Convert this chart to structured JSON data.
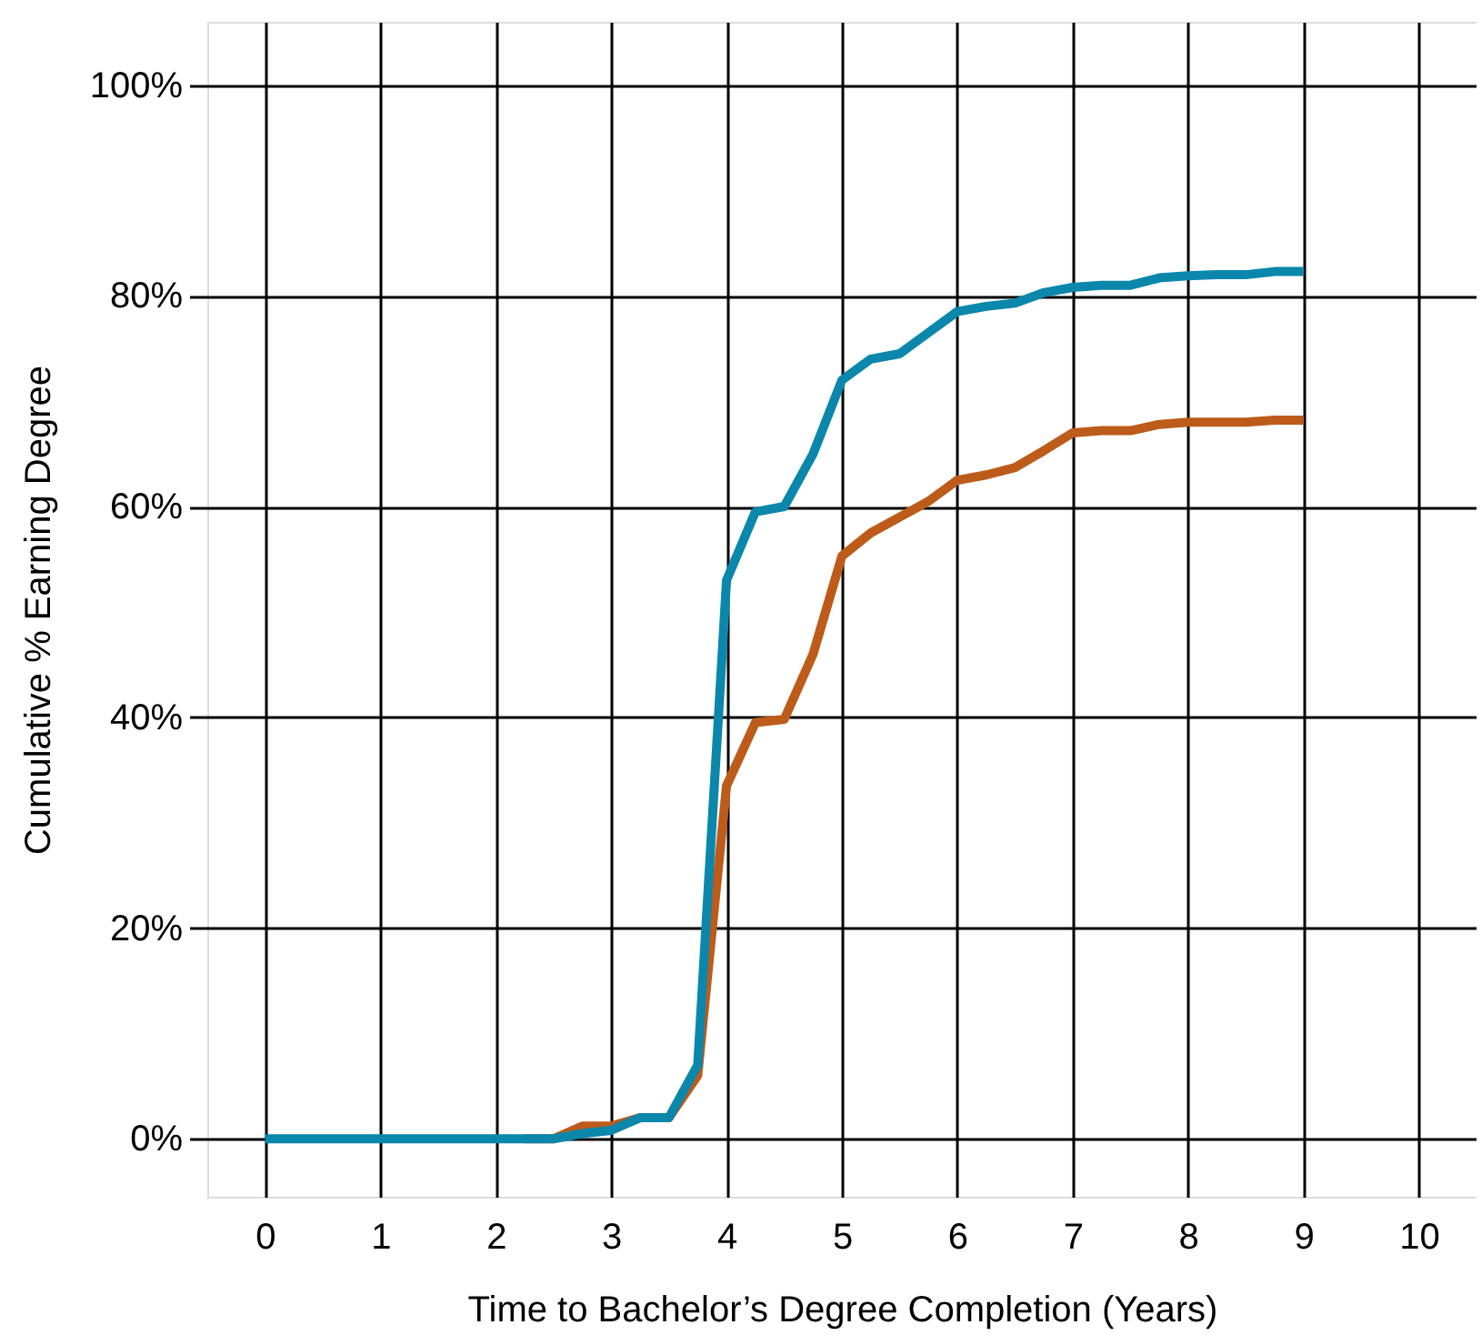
{
  "chart_data": {
    "type": "line",
    "xlabel": "Time to Bachelor’s Degree Completion (Years)",
    "ylabel": "Cumulative % Earning Degree",
    "x": [
      0,
      0.25,
      0.5,
      0.75,
      1,
      1.25,
      1.5,
      1.75,
      2,
      2.25,
      2.5,
      2.75,
      3,
      3.25,
      3.5,
      3.75,
      4,
      4.25,
      4.5,
      4.75,
      5,
      5.25,
      5.5,
      5.75,
      6,
      6.25,
      6.5,
      6.75,
      7,
      7.25,
      7.5,
      7.75,
      8,
      8.25,
      8.5,
      8.75,
      9
    ],
    "series": [
      {
        "color": "#bd5b1a",
        "values": [
          null,
          null,
          null,
          null,
          null,
          null,
          null,
          null,
          null,
          0,
          0,
          1.2,
          1.2,
          2,
          2,
          6,
          33.5,
          39.5,
          39.8,
          46,
          55.3,
          57.5,
          59,
          60.5,
          62.5,
          63,
          63.7,
          65.3,
          67,
          67.2,
          67.2,
          67.8,
          68,
          68,
          68,
          68.2,
          68.2
        ]
      },
      {
        "color": "#0a87ab",
        "values": [
          0,
          0,
          0,
          0,
          0,
          0,
          0,
          0,
          0,
          0,
          0,
          0.5,
          0.8,
          2,
          2,
          7,
          53,
          59.5,
          60,
          65,
          72,
          74,
          74.5,
          76.5,
          78.5,
          79,
          79.3,
          80.3,
          80.8,
          81,
          81,
          81.7,
          81.9,
          82,
          82,
          82.3,
          82.3
        ]
      }
    ],
    "xlim": [
      -0.5,
      10.5
    ],
    "xticks": [
      0,
      1,
      2,
      3,
      4,
      5,
      6,
      7,
      8,
      9,
      10
    ],
    "ylim": [
      -5.5,
      106
    ],
    "yticks": [
      {
        "value": 0,
        "label": "0%"
      },
      {
        "value": 20,
        "label": "20%"
      },
      {
        "value": 40,
        "label": "40%"
      },
      {
        "value": 60,
        "label": "60%"
      },
      {
        "value": 80,
        "label": "80%"
      },
      {
        "value": 100,
        "label": "100%"
      }
    ],
    "grid": true
  }
}
